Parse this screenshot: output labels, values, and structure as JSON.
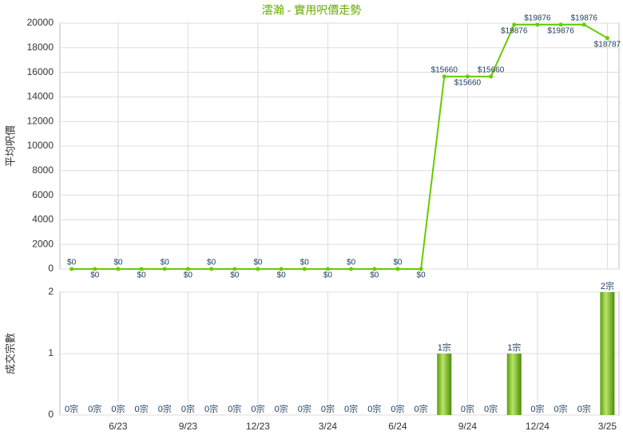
{
  "chart_data": [
    {
      "type": "line",
      "title": "澐瀚 - 實用呎價走勢",
      "ylabel": "平均呎價",
      "color": "#66cc00",
      "categories": [
        null,
        null,
        "6/23",
        null,
        null,
        "9/23",
        null,
        null,
        "12/23",
        null,
        null,
        "3/24",
        null,
        null,
        "6/24",
        null,
        null,
        "9/24",
        null,
        null,
        "12/24",
        null,
        null,
        "3/25"
      ],
      "values": [
        0,
        0,
        0,
        0,
        0,
        0,
        0,
        0,
        0,
        0,
        0,
        0,
        0,
        0,
        0,
        0,
        15660,
        15660,
        15660,
        19876,
        19876,
        19876,
        19876,
        18787
      ],
      "value_labels": [
        "$0",
        "$0",
        "$0",
        "$0",
        "$0",
        "$0",
        "$0",
        "$0",
        "$0",
        "$0",
        "$0",
        "$0",
        "$0",
        "$0",
        "$0",
        "$0",
        "$15660",
        "$15660",
        "$15660",
        "$19876",
        "$19876",
        "$19876",
        "$19876",
        "$18787"
      ],
      "ylim": [
        0,
        20000
      ],
      "yticks": [
        0,
        2000,
        4000,
        6000,
        8000,
        10000,
        12000,
        14000,
        16000,
        18000,
        20000
      ],
      "grid": true
    },
    {
      "type": "bar",
      "ylabel": "成交宗數",
      "color": "#66bb11",
      "categories": [
        null,
        null,
        "6/23",
        null,
        null,
        "9/23",
        null,
        null,
        "12/23",
        null,
        null,
        "3/24",
        null,
        null,
        "6/24",
        null,
        null,
        "9/24",
        null,
        null,
        "12/24",
        null,
        null,
        "3/25"
      ],
      "values": [
        0,
        0,
        0,
        0,
        0,
        0,
        0,
        0,
        0,
        0,
        0,
        0,
        0,
        0,
        0,
        0,
        1,
        0,
        0,
        1,
        0,
        0,
        0,
        2
      ],
      "value_labels": [
        "0宗",
        "0宗",
        "0宗",
        "0宗",
        "0宗",
        "0宗",
        "0宗",
        "0宗",
        "0宗",
        "0宗",
        "0宗",
        "0宗",
        "0宗",
        "0宗",
        "0宗",
        "0宗",
        "1宗",
        "0宗",
        "0宗",
        "1宗",
        "0宗",
        "0宗",
        "0宗",
        "2宗"
      ],
      "ylim": [
        0,
        2
      ],
      "yticks": [
        0,
        1,
        2
      ],
      "grid": true
    }
  ]
}
